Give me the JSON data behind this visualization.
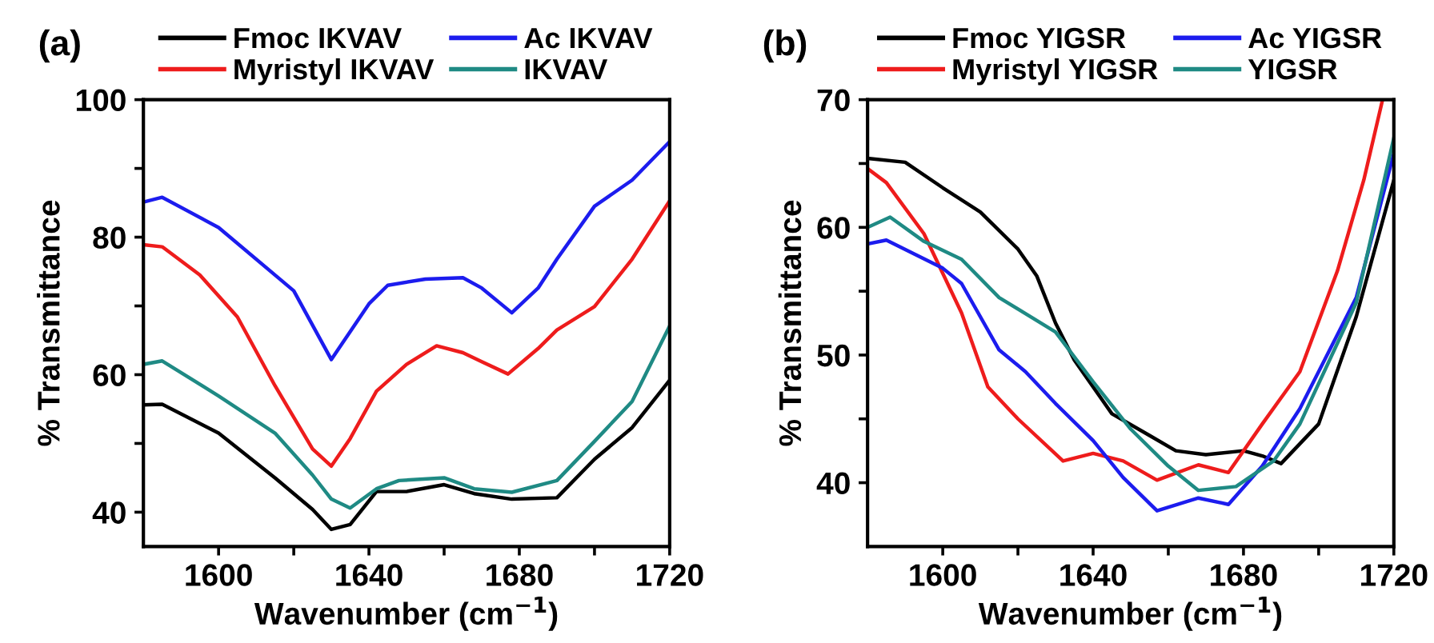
{
  "chart_data": [
    {
      "type": "line",
      "xlabel": "Wavenumber (cm$^{−1}$)",
      "ylabel": "% Transmittance",
      "annotations": [
        "(a)"
      ],
      "legend": "top",
      "grid": false,
      "marker": "none",
      "line_style": "solid",
      "xlim": [
        1580,
        1720
      ],
      "ylim": [
        35,
        100
      ],
      "xticks": [
        1600,
        {
          "value": 1620,
          "label": null
        },
        1640,
        {
          "value": 1660,
          "label": null
        },
        1680,
        {
          "value": 1700,
          "label": null
        },
        1720
      ],
      "yticks": [
        40,
        {
          "value": 50,
          "label": null
        },
        60,
        {
          "value": 70,
          "label": null
        },
        80,
        {
          "value": 90,
          "label": null
        },
        100
      ],
      "series": [
        {
          "name": "Fmoc IKVAV",
          "color": "#000000",
          "x": [
            1580,
            1585,
            1600,
            1615,
            1625,
            1630,
            1635,
            1642,
            1650,
            1660,
            1668,
            1678,
            1690,
            1700,
            1710,
            1720
          ],
          "values": [
            55.6,
            55.7,
            51.5,
            45,
            40.4,
            37.5,
            38.2,
            43,
            43,
            44,
            42.7,
            41.9,
            42.1,
            47.7,
            52.3,
            59.2
          ]
        },
        {
          "name": "Myristyl IKVAV",
          "color": "#ee1c1c",
          "x": [
            1580,
            1585,
            1595,
            1605,
            1615,
            1625,
            1630,
            1635,
            1642,
            1650,
            1658,
            1665,
            1670,
            1677,
            1685,
            1690,
            1700,
            1710,
            1720
          ],
          "values": [
            78.9,
            78.6,
            74.5,
            68.4,
            58.4,
            49.2,
            46.7,
            50.7,
            57.6,
            61.5,
            64.2,
            63.2,
            61.9,
            60.1,
            63.8,
            66.5,
            69.9,
            76.8,
            85.3
          ]
        },
        {
          "name": "Ac IKVAV",
          "color": "#1c1cee",
          "x": [
            1580,
            1585,
            1600,
            1620,
            1630,
            1640,
            1645,
            1655,
            1665,
            1670,
            1678,
            1685,
            1690,
            1700,
            1710,
            1720
          ],
          "values": [
            85.1,
            85.8,
            81.4,
            72.2,
            62.2,
            70.3,
            73,
            73.9,
            74.1,
            72.6,
            69,
            72.6,
            76.8,
            84.5,
            88.3,
            93.9
          ]
        },
        {
          "name": "IKVAV",
          "color": "#1f8a84",
          "x": [
            1580,
            1585,
            1600,
            1615,
            1625,
            1630,
            1635,
            1642,
            1648,
            1660,
            1668,
            1678,
            1690,
            1700,
            1710,
            1720
          ],
          "values": [
            61.5,
            62,
            56.9,
            51.5,
            45.4,
            41.9,
            40.6,
            43.4,
            44.6,
            45,
            43.4,
            42.9,
            44.6,
            50.3,
            56.1,
            67.1
          ]
        }
      ]
    },
    {
      "type": "line",
      "xlabel": "Wavenumber (cm$^{−1}$)",
      "ylabel": "% Transmittance",
      "annotations": [
        "(b)"
      ],
      "legend": "top",
      "grid": false,
      "marker": "none",
      "line_style": "solid",
      "xlim": [
        1580,
        1720
      ],
      "ylim": [
        35,
        70
      ],
      "xticks": [
        1600,
        {
          "value": 1620,
          "label": null
        },
        1640,
        {
          "value": 1660,
          "label": null
        },
        1680,
        {
          "value": 1700,
          "label": null
        },
        1720
      ],
      "yticks": [
        40,
        {
          "value": 45,
          "label": null
        },
        50,
        {
          "value": 55,
          "label": null
        },
        60,
        {
          "value": 65,
          "label": null
        },
        70
      ],
      "series": [
        {
          "name": "Fmoc YIGSR",
          "color": "#000000",
          "x": [
            1580,
            1590,
            1600,
            1610,
            1620,
            1625,
            1630,
            1635,
            1645,
            1655,
            1662,
            1670,
            1680,
            1685,
            1690,
            1700,
            1710,
            1720
          ],
          "values": [
            65.4,
            65.1,
            63.1,
            61.2,
            58.3,
            56.2,
            52.5,
            49.6,
            45.4,
            43.7,
            42.5,
            42.2,
            42.5,
            42.1,
            41.5,
            44.6,
            53,
            63.7
          ]
        },
        {
          "name": "Myristyl YIGSR",
          "color": "#ee1c1c",
          "x": [
            1580,
            1585,
            1595,
            1605,
            1612,
            1620,
            1632,
            1640,
            1648,
            1657,
            1668,
            1676,
            1685,
            1695,
            1705,
            1712,
            1717
          ],
          "values": [
            64.6,
            63.5,
            59.5,
            53.3,
            47.5,
            45,
            41.7,
            42.3,
            41.7,
            40.2,
            41.4,
            40.8,
            44.6,
            48.7,
            56.6,
            63.7,
            70
          ]
        },
        {
          "name": "Ac YIGSR",
          "color": "#1c1cee",
          "x": [
            1580,
            1585,
            1600,
            1605,
            1615,
            1622,
            1630,
            1640,
            1648,
            1657,
            1668,
            1676,
            1685,
            1695,
            1710,
            1720
          ],
          "values": [
            58.7,
            59,
            56.8,
            55.6,
            50.4,
            48.7,
            46.2,
            43.3,
            40.4,
            37.8,
            38.8,
            38.3,
            41.3,
            45.8,
            54.5,
            65.8
          ]
        },
        {
          "name": "YIGSR",
          "color": "#1f8a84",
          "x": [
            1580,
            1586,
            1595,
            1605,
            1615,
            1630,
            1640,
            1650,
            1660,
            1668,
            1678,
            1688,
            1695,
            1710,
            1720
          ],
          "values": [
            60,
            60.8,
            58.9,
            57.5,
            54.5,
            51.8,
            47.9,
            44.2,
            41.3,
            39.4,
            39.7,
            41.7,
            44.6,
            54.1,
            67
          ]
        }
      ]
    }
  ]
}
